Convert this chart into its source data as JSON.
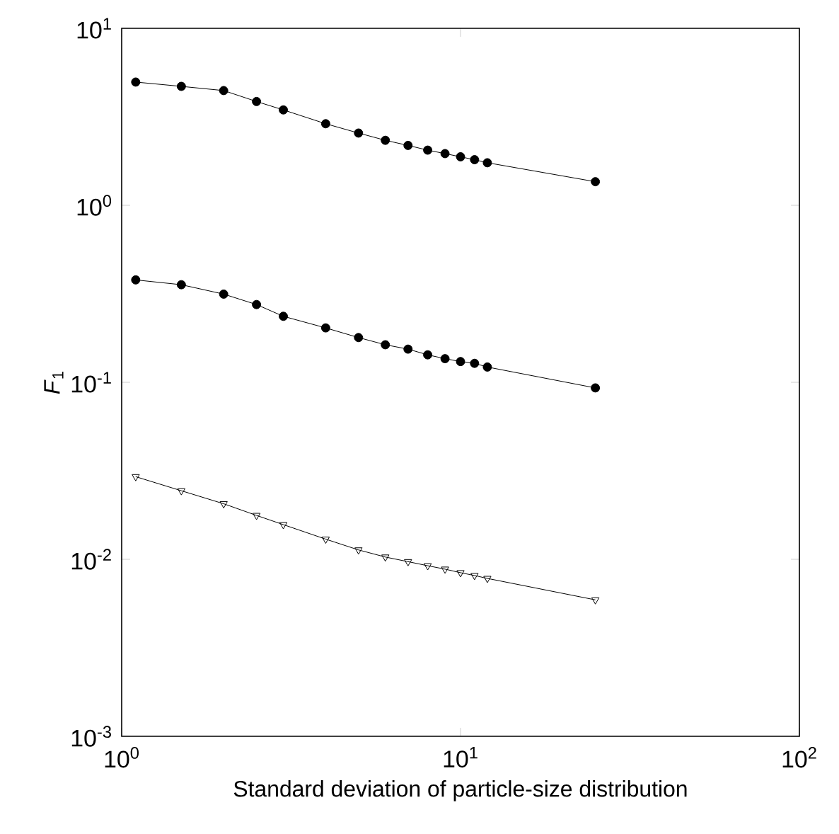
{
  "chart_data": {
    "type": "line",
    "xlabel": "Standard deviation of particle-size distribution",
    "ylabel": "*F*$_{1}$",
    "log": "xy",
    "xlim": [
      1,
      100
    ],
    "ylim": [
      0.001,
      10
    ],
    "xticks": [
      {
        "value": 1,
        "label": "10$^{0}$"
      },
      {
        "value": 10,
        "label": "10$^{1}$"
      },
      {
        "value": 100,
        "label": "10$^{2}$"
      }
    ],
    "yticks": [
      {
        "value": 0.001,
        "label": "10$^{-3}$"
      },
      {
        "value": 0.01,
        "label": "10$^{-2}$"
      },
      {
        "value": 0.1,
        "label": "10$^{-1}$"
      },
      {
        "value": 1,
        "label": "10$^{0}$"
      },
      {
        "value": 10,
        "label": "10$^{1}$"
      }
    ],
    "x": [
      1.1,
      1.5,
      2,
      2.5,
      3,
      4,
      5,
      6,
      7,
      8,
      9,
      10,
      11,
      12,
      25
    ],
    "series": [
      {
        "color": "#000000",
        "marker": "circle",
        "values": [
          4.97,
          4.7,
          4.45,
          3.86,
          3.46,
          2.89,
          2.56,
          2.33,
          2.18,
          2.05,
          1.96,
          1.88,
          1.81,
          1.74,
          1.36
        ]
      },
      {
        "color": "#000000",
        "marker": "circle",
        "values": [
          0.379,
          0.356,
          0.315,
          0.275,
          0.236,
          0.203,
          0.179,
          0.163,
          0.154,
          0.143,
          0.136,
          0.131,
          0.128,
          0.122,
          0.093
        ]
      },
      {
        "color": "#000000",
        "marker": "triangle",
        "values": [
          0.0293,
          0.0244,
          0.0206,
          0.0177,
          0.0157,
          0.013,
          0.0113,
          0.0103,
          0.0097,
          0.0092,
          0.0088,
          0.0084,
          0.0081,
          0.0078,
          0.0059
        ]
      }
    ]
  }
}
